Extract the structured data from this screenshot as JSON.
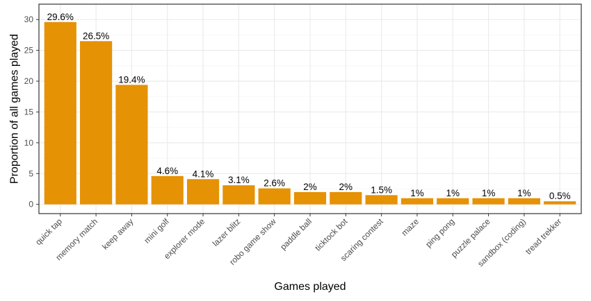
{
  "chart_data": {
    "type": "bar",
    "title": "",
    "xlabel": "Games played",
    "ylabel": "Proportion of all games played",
    "categories": [
      "quick tap",
      "memory match",
      "keep away",
      "mini golf",
      "explorer mode",
      "lazer blitz",
      "robo game show",
      "paddle ball",
      "ticktock bot",
      "scaring contest",
      "maze",
      "ping pong",
      "puzzle palace",
      "sandbox (coding)",
      "tread trekker"
    ],
    "values": [
      29.6,
      26.5,
      19.4,
      4.6,
      4.1,
      3.1,
      2.6,
      2,
      2,
      1.5,
      1,
      1,
      1,
      1,
      0.5
    ],
    "data_labels": [
      "29.6%",
      "26.5%",
      "19.4%",
      "4.6%",
      "4.1%",
      "3.1%",
      "2.6%",
      "2%",
      "2%",
      "1.5%",
      "1%",
      "1%",
      "1%",
      "1%",
      "0.5%"
    ],
    "ylim": [
      -1.5,
      32.5
    ],
    "yticks": [
      0,
      5,
      10,
      15,
      20,
      25,
      30
    ],
    "ytick_labels": [
      "0",
      "5",
      "10",
      "15",
      "20",
      "25",
      "30"
    ],
    "grid": true,
    "legend": "none",
    "colors": {
      "bar": "#E69205",
      "panel_border": "#333333",
      "grid_major": "#ebebeb",
      "grid_minor": "#f5f5f5"
    }
  }
}
